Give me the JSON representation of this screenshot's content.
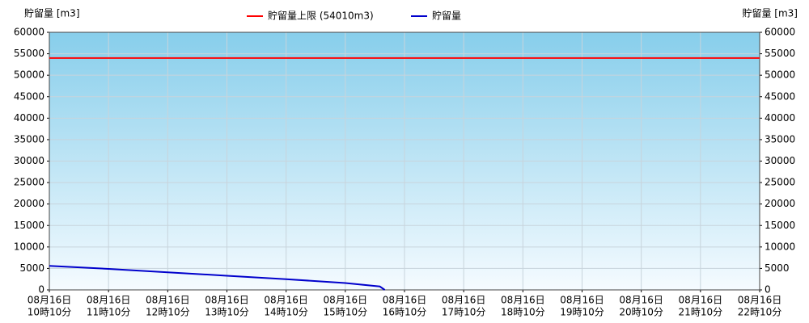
{
  "chart_data": {
    "type": "line",
    "y_label": "貯留量 [m3]",
    "y2_label": "貯留量 [m3]",
    "threshold": {
      "name": "貯留量上限 (54010m3)",
      "value": 54010,
      "color": "#ff0000"
    },
    "x": [
      "08-16 10:10",
      "08-16 11:10",
      "08-16 12:10",
      "08-16 13:10",
      "08-16 14:10",
      "08-16 15:10",
      "08-16 15:45",
      "08-16 15:50"
    ],
    "series": [
      {
        "name": "貯留量",
        "color": "#0000cc",
        "values": [
          5600,
          4900,
          4100,
          3300,
          2500,
          1600,
          800,
          0
        ]
      }
    ],
    "xlim": [
      "08-16 10:10",
      "08-16 22:10"
    ],
    "xticks": [
      {
        "value": "08-16 10:10",
        "label": [
          "08月16日",
          "10時10分"
        ]
      },
      {
        "value": "08-16 11:10",
        "label": [
          "08月16日",
          "11時10分"
        ]
      },
      {
        "value": "08-16 12:10",
        "label": [
          "08月16日",
          "12時10分"
        ]
      },
      {
        "value": "08-16 13:10",
        "label": [
          "08月16日",
          "13時10分"
        ]
      },
      {
        "value": "08-16 14:10",
        "label": [
          "08月16日",
          "14時10分"
        ]
      },
      {
        "value": "08-16 15:10",
        "label": [
          "08月16日",
          "15時10分"
        ]
      },
      {
        "value": "08-16 16:10",
        "label": [
          "08月16日",
          "16時10分"
        ]
      },
      {
        "value": "08-16 17:10",
        "label": [
          "08月16日",
          "17時10分"
        ]
      },
      {
        "value": "08-16 18:10",
        "label": [
          "08月16日",
          "18時10分"
        ]
      },
      {
        "value": "08-16 19:10",
        "label": [
          "08月16日",
          "19時10分"
        ]
      },
      {
        "value": "08-16 20:10",
        "label": [
          "08月16日",
          "20時10分"
        ]
      },
      {
        "value": "08-16 21:10",
        "label": [
          "08月16日",
          "21時10分"
        ]
      },
      {
        "value": "08-16 22:10",
        "label": [
          "08月16日",
          "22時10分"
        ]
      }
    ],
    "ylim": [
      0,
      60000
    ],
    "yticks": [
      0,
      5000,
      10000,
      15000,
      20000,
      25000,
      30000,
      35000,
      40000,
      45000,
      50000,
      55000,
      60000
    ],
    "y2lim": [
      0,
      60000
    ],
    "y2ticks": [
      0,
      5000,
      10000,
      15000,
      20000,
      25000,
      30000,
      35000,
      40000,
      45000,
      50000,
      55000,
      60000
    ],
    "grid": true
  }
}
